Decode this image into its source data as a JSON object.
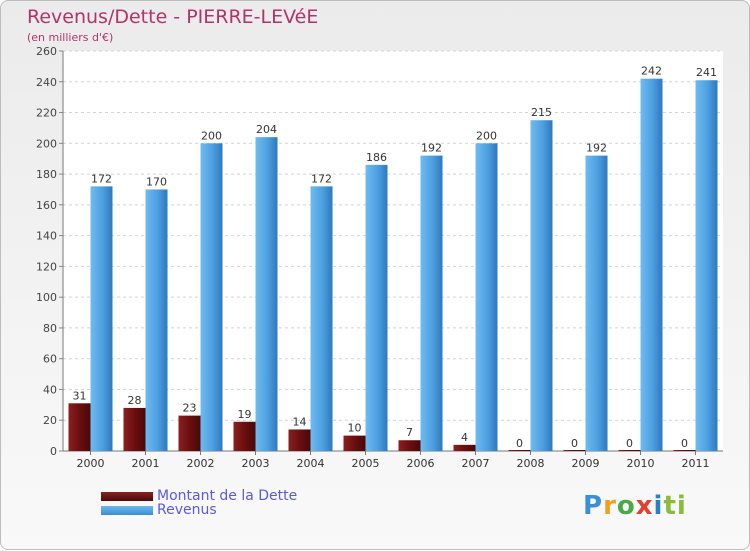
{
  "title": "Revenus/Dette - PIERRE-LEVéE",
  "subtitle": "(en milliers d'€)",
  "chart_data": {
    "type": "bar",
    "categories": [
      "2000",
      "2001",
      "2002",
      "2003",
      "2004",
      "2005",
      "2006",
      "2007",
      "2008",
      "2009",
      "2010",
      "2011"
    ],
    "series": [
      {
        "name": "Montant de la Dette",
        "values": [
          31,
          28,
          23,
          19,
          14,
          10,
          7,
          4,
          0,
          0,
          0,
          0
        ],
        "color": "#7a1414"
      },
      {
        "name": "Revenus",
        "values": [
          172,
          170,
          200,
          204,
          172,
          186,
          192,
          200,
          215,
          192,
          242,
          241
        ],
        "color": "#4fa3e2"
      }
    ],
    "ylim": [
      0,
      260
    ],
    "yticks": [
      0,
      20,
      40,
      60,
      80,
      100,
      120,
      140,
      160,
      180,
      200,
      220,
      240,
      260
    ],
    "grid": true,
    "legend": "bottom-left"
  },
  "legend": {
    "items": [
      {
        "label": "Montant de la Dette",
        "color": "#6e0f0f"
      },
      {
        "label": "Revenus",
        "color": "#4fa3e2"
      }
    ]
  },
  "logo": {
    "p": "P",
    "r": "r",
    "o": "o",
    "x": "x",
    "i": "i",
    "t": "ti"
  }
}
